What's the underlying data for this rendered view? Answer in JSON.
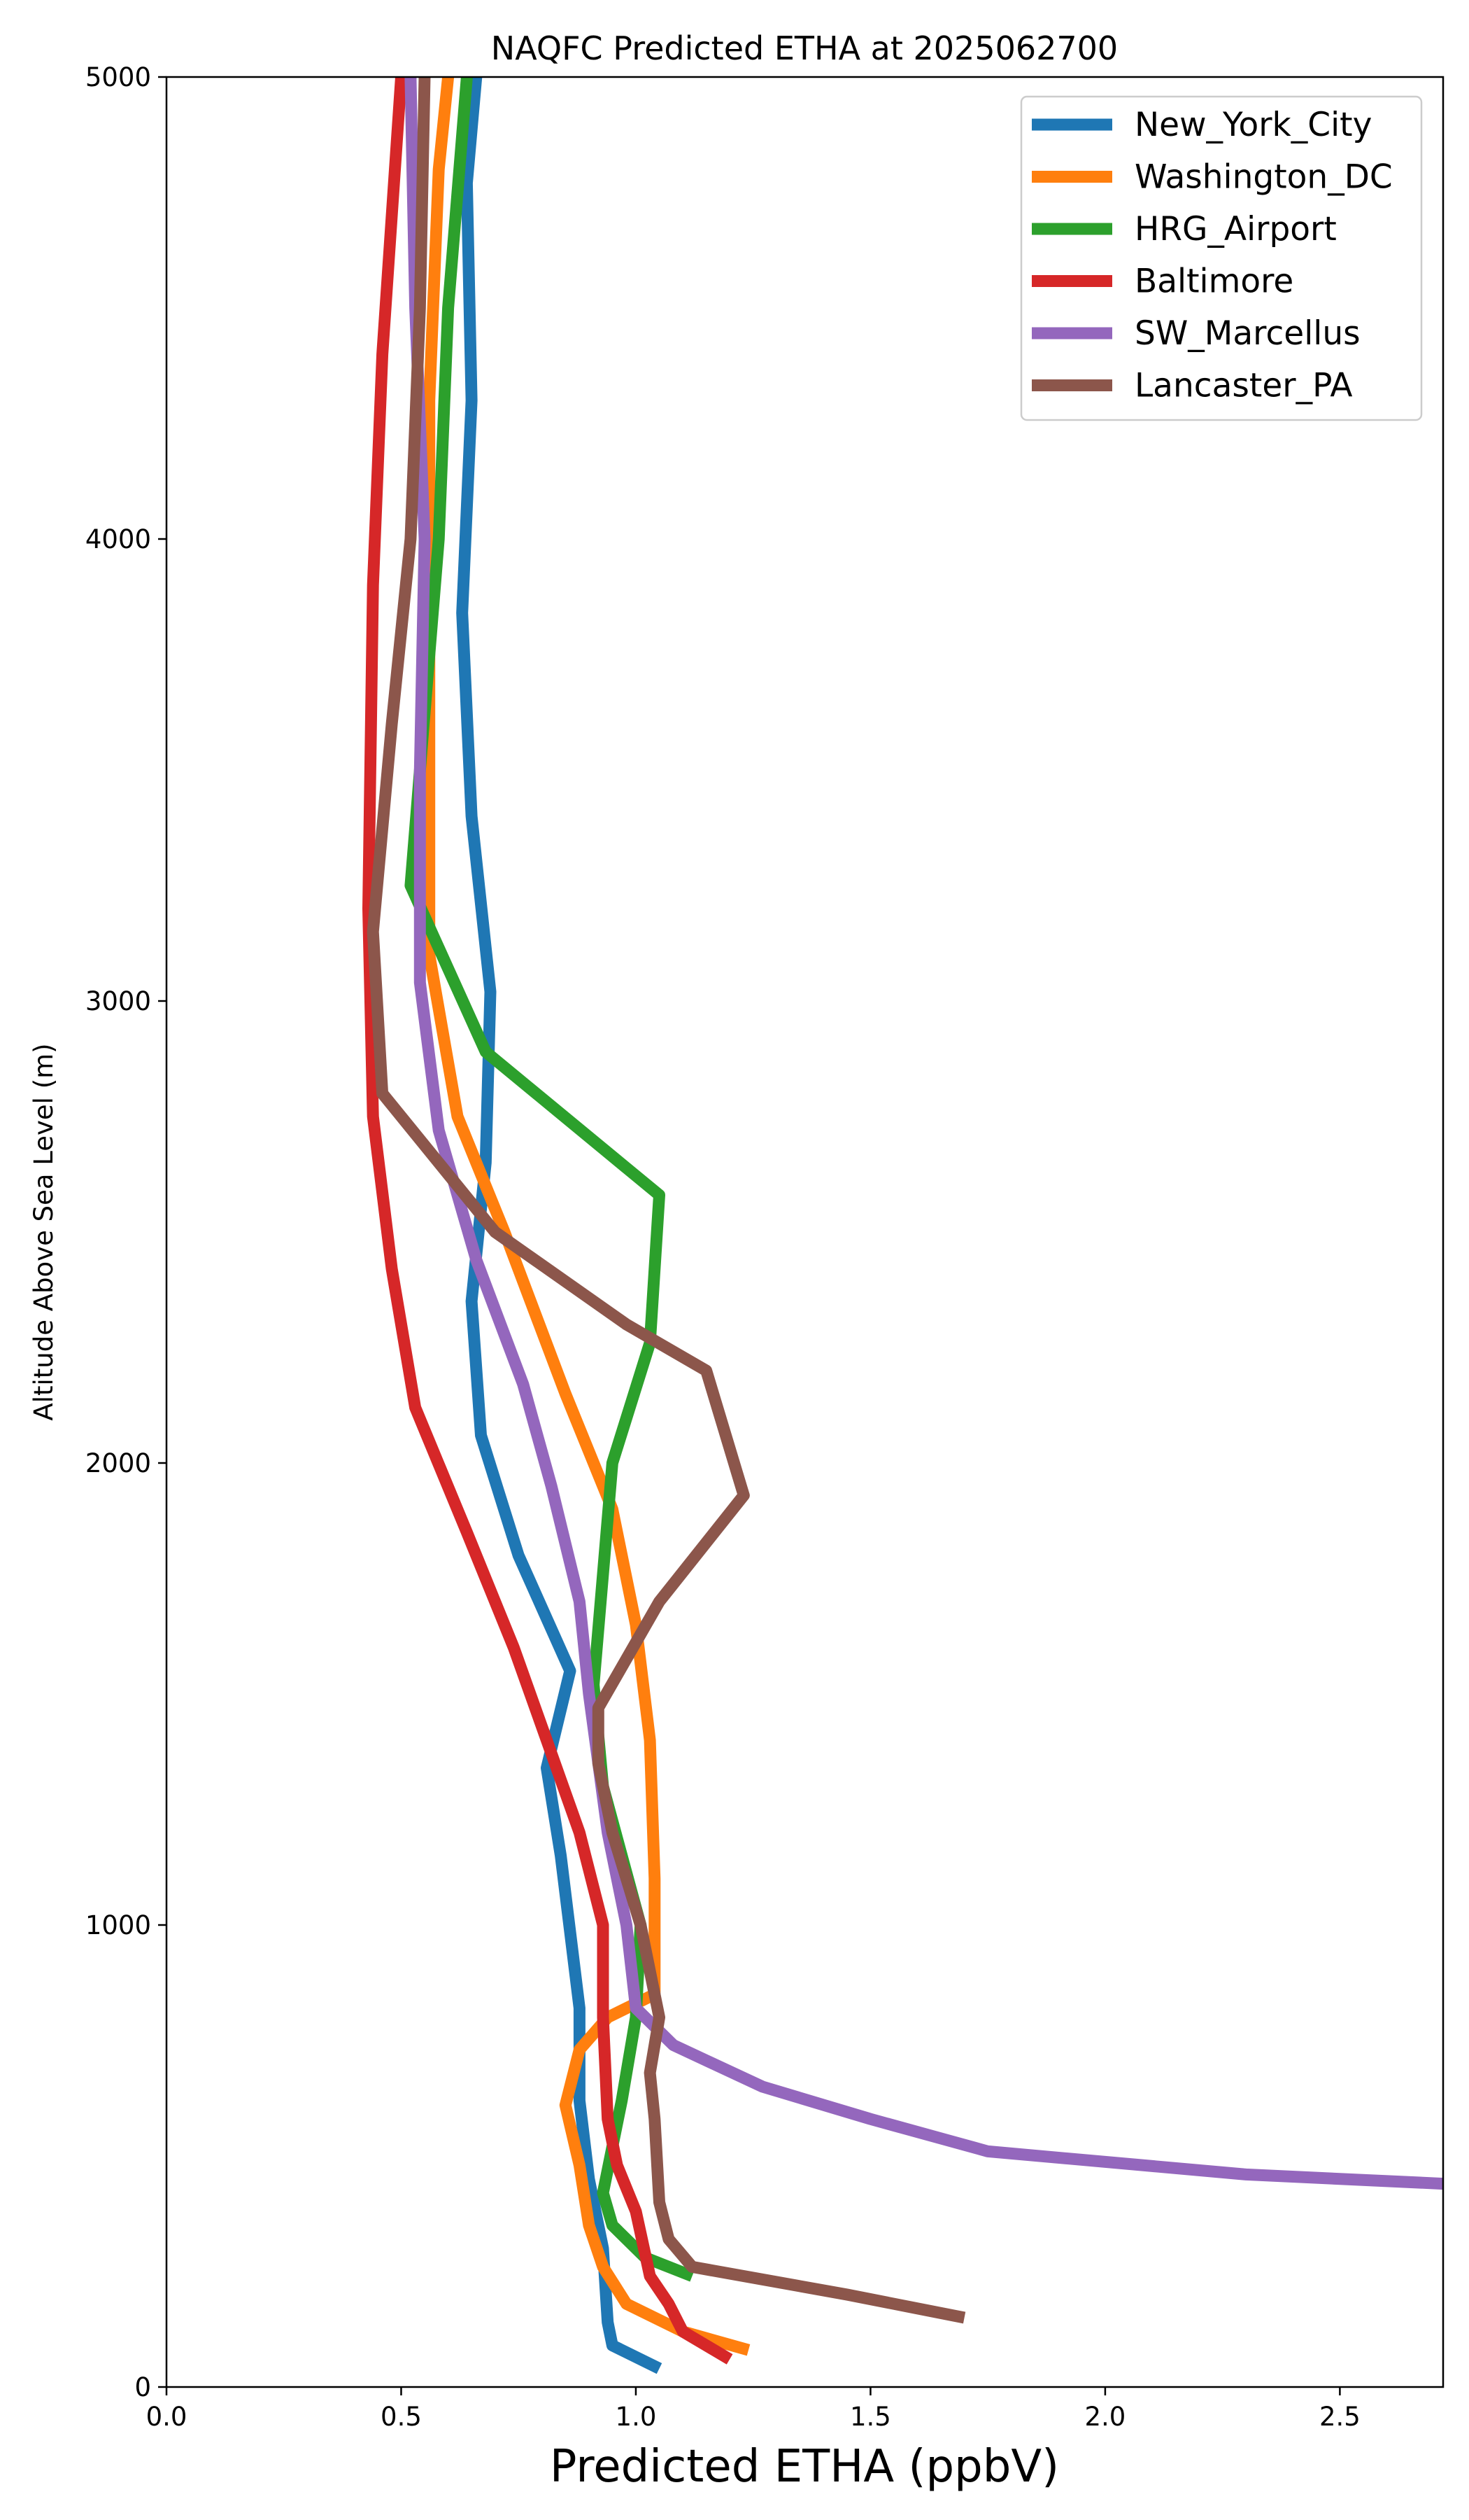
{
  "chart_data": {
    "type": "line",
    "title": "NAQFC Predicted ETHA at 2025062700",
    "xlabel": "Predicted ETHA (ppbV)",
    "ylabel": "Altitude Above Sea Level (m)",
    "xlim": [
      0.0,
      2.72
    ],
    "ylim": [
      0,
      5000
    ],
    "xticks": [
      0.0,
      0.5,
      1.0,
      1.5,
      2.0,
      2.5
    ],
    "xtick_labels": [
      "0.0",
      "0.5",
      "1.0",
      "1.5",
      "2.0",
      "2.5"
    ],
    "yticks": [
      0,
      1000,
      2000,
      3000,
      4000,
      5000
    ],
    "ytick_labels": [
      "0",
      "1000",
      "2000",
      "3000",
      "4000",
      "5000"
    ],
    "grid": false,
    "legend_position": "top-right",
    "series": [
      {
        "name": "New_York_City",
        "color": "#1f77b4",
        "points": [
          [
            1.05,
            40
          ],
          [
            0.95,
            90
          ],
          [
            0.94,
            140
          ],
          [
            0.93,
            300
          ],
          [
            0.9,
            450
          ],
          [
            0.88,
            620
          ],
          [
            0.88,
            820
          ],
          [
            0.84,
            1150
          ],
          [
            0.81,
            1340
          ],
          [
            0.86,
            1550
          ],
          [
            0.75,
            1800
          ],
          [
            0.67,
            2060
          ],
          [
            0.65,
            2350
          ],
          [
            0.68,
            2650
          ],
          [
            0.69,
            3020
          ],
          [
            0.65,
            3400
          ],
          [
            0.63,
            3840
          ],
          [
            0.65,
            4300
          ],
          [
            0.64,
            4770
          ],
          [
            0.66,
            5000
          ]
        ]
      },
      {
        "name": "Washington_DC",
        "color": "#ff7f0e",
        "points": [
          [
            1.24,
            80
          ],
          [
            1.1,
            120
          ],
          [
            0.98,
            180
          ],
          [
            0.93,
            260
          ],
          [
            0.9,
            350
          ],
          [
            0.88,
            480
          ],
          [
            0.85,
            610
          ],
          [
            0.88,
            730
          ],
          [
            0.94,
            800
          ],
          [
            1.04,
            850
          ],
          [
            1.04,
            1100
          ],
          [
            1.03,
            1400
          ],
          [
            1.0,
            1650
          ],
          [
            0.95,
            1900
          ],
          [
            0.85,
            2150
          ],
          [
            0.72,
            2500
          ],
          [
            0.62,
            2750
          ],
          [
            0.56,
            3100
          ],
          [
            0.56,
            3600
          ],
          [
            0.56,
            4300
          ],
          [
            0.58,
            4800
          ],
          [
            0.6,
            5000
          ]
        ]
      },
      {
        "name": "HRG_Airport",
        "color": "#2ca02c",
        "points": [
          [
            1.12,
            240
          ],
          [
            1.02,
            280
          ],
          [
            0.95,
            350
          ],
          [
            0.93,
            420
          ],
          [
            0.97,
            620
          ],
          [
            1.0,
            800
          ],
          [
            1.01,
            1000
          ],
          [
            0.93,
            1300
          ],
          [
            0.91,
            1520
          ],
          [
            0.95,
            2000
          ],
          [
            1.03,
            2260
          ],
          [
            1.05,
            2580
          ],
          [
            0.68,
            2890
          ],
          [
            0.52,
            3250
          ],
          [
            0.58,
            4000
          ],
          [
            0.6,
            4500
          ],
          [
            0.64,
            5000
          ]
        ]
      },
      {
        "name": "Baltimore",
        "color": "#d62728",
        "points": [
          [
            1.2,
            60
          ],
          [
            1.1,
            120
          ],
          [
            1.07,
            180
          ],
          [
            1.03,
            240
          ],
          [
            1.0,
            380
          ],
          [
            0.96,
            480
          ],
          [
            0.94,
            580
          ],
          [
            0.93,
            800
          ],
          [
            0.93,
            1000
          ],
          [
            0.88,
            1200
          ],
          [
            0.81,
            1400
          ],
          [
            0.74,
            1600
          ],
          [
            0.64,
            1850
          ],
          [
            0.53,
            2120
          ],
          [
            0.48,
            2420
          ],
          [
            0.44,
            2750
          ],
          [
            0.43,
            3200
          ],
          [
            0.44,
            3900
          ],
          [
            0.46,
            4400
          ],
          [
            0.5,
            5000
          ]
        ]
      },
      {
        "name": "SW_Marcellus",
        "color": "#9467bd",
        "points": [
          [
            2.72,
            440
          ],
          [
            2.3,
            460
          ],
          [
            1.75,
            510
          ],
          [
            1.5,
            580
          ],
          [
            1.27,
            650
          ],
          [
            1.08,
            740
          ],
          [
            1.0,
            820
          ],
          [
            0.98,
            1000
          ],
          [
            0.94,
            1200
          ],
          [
            0.9,
            1500
          ],
          [
            0.88,
            1700
          ],
          [
            0.82,
            1950
          ],
          [
            0.76,
            2170
          ],
          [
            0.66,
            2440
          ],
          [
            0.58,
            2720
          ],
          [
            0.54,
            3040
          ],
          [
            0.54,
            3500
          ],
          [
            0.55,
            4000
          ],
          [
            0.53,
            4500
          ],
          [
            0.52,
            5000
          ]
        ]
      },
      {
        "name": "Lancaster_PA",
        "color": "#8c564b",
        "points": [
          [
            1.7,
            150
          ],
          [
            1.45,
            200
          ],
          [
            1.12,
            260
          ],
          [
            1.07,
            320
          ],
          [
            1.05,
            400
          ],
          [
            1.04,
            580
          ],
          [
            1.03,
            680
          ],
          [
            1.05,
            800
          ],
          [
            1.01,
            1000
          ],
          [
            0.95,
            1200
          ],
          [
            0.92,
            1350
          ],
          [
            0.92,
            1470
          ],
          [
            1.05,
            1700
          ],
          [
            1.23,
            1930
          ],
          [
            1.15,
            2200
          ],
          [
            0.98,
            2300
          ],
          [
            0.7,
            2500
          ],
          [
            0.46,
            2800
          ],
          [
            0.44,
            3150
          ],
          [
            0.48,
            3600
          ],
          [
            0.52,
            4000
          ],
          [
            0.54,
            4500
          ],
          [
            0.55,
            5000
          ]
        ]
      }
    ]
  }
}
